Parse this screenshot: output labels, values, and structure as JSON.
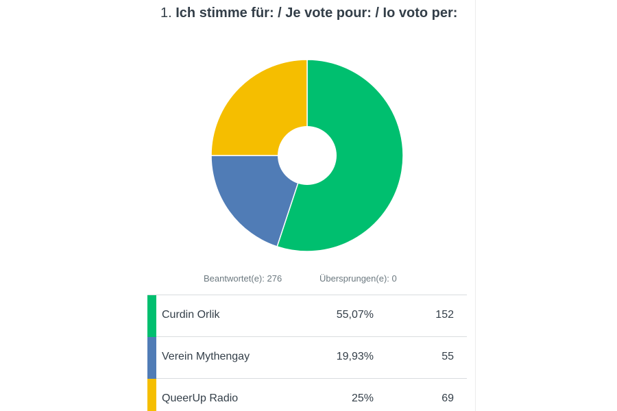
{
  "question": {
    "number": "1.",
    "text": "Ich stimme für: / Je vote pour: / Io voto per:"
  },
  "summary": {
    "answered": "Beantwortet(e): 276",
    "skipped": "Übersprungen(e): 0"
  },
  "colors": {
    "green": "#00bf6f",
    "blue": "#507cb6",
    "yellow": "#f5be00"
  },
  "chart_data": {
    "type": "pie",
    "style": "donut",
    "start_angle_deg": 0,
    "direction": "clockwise",
    "categories": [
      "Curdin Orlik",
      "Verein Mythengay",
      "QueerUp Radio"
    ],
    "values": [
      55.07,
      19.93,
      25
    ],
    "counts": [
      152,
      55,
      69
    ],
    "total": 276,
    "colors": [
      "#00bf6f",
      "#507cb6",
      "#f5be00"
    ],
    "legend": "table-below"
  },
  "table": {
    "rows": [
      {
        "label": "Curdin Orlik",
        "percent": "55,07%",
        "count": "152",
        "color": "#00bf6f"
      },
      {
        "label": "Verein Mythengay",
        "percent": "19,93%",
        "count": "55",
        "color": "#507cb6"
      },
      {
        "label": "QueerUp Radio",
        "percent": "25%",
        "count": "69",
        "color": "#f5be00"
      }
    ]
  }
}
